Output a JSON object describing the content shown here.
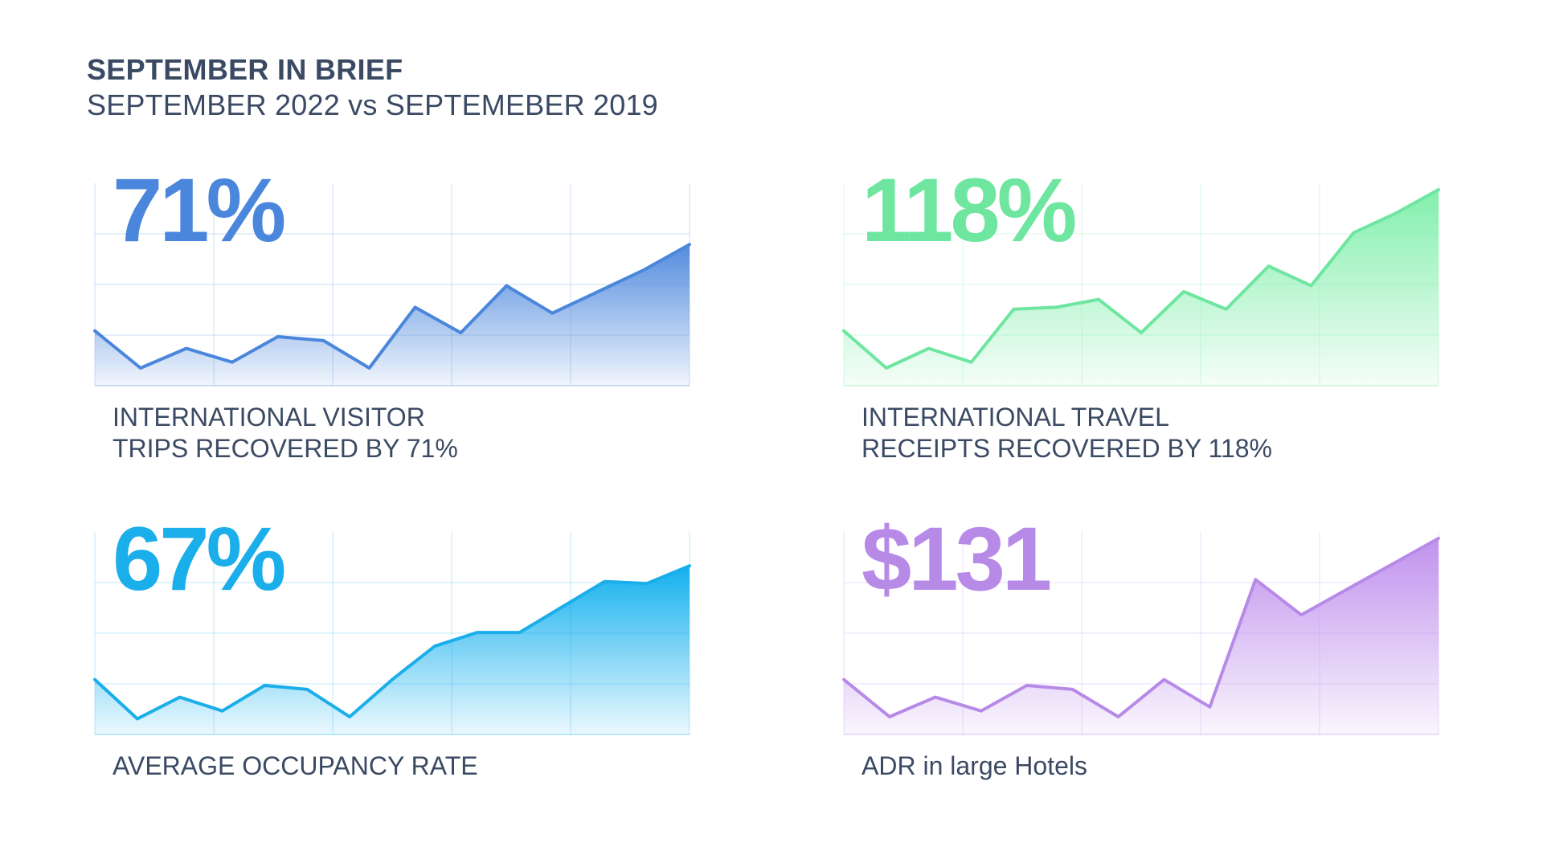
{
  "header": {
    "title": "SEPTEMBER IN BRIEF",
    "subtitle": "SEPTEMBER  2022  vs  SEPTEMEBER 2019"
  },
  "chart_data": [
    {
      "type": "area",
      "headline": "71%",
      "label": "INTERNATIONAL VISITOR\nTRIPS RECOVERED BY 71%",
      "color": "#4a86dc",
      "fill_top": "#4a86dc",
      "x": [
        0,
        1,
        2,
        3,
        4,
        5,
        6,
        7,
        8,
        9,
        10,
        11,
        12,
        13
      ],
      "values": [
        28,
        9,
        19,
        12,
        25,
        23,
        9,
        40,
        27,
        51,
        37,
        48,
        59,
        72
      ],
      "ylim": [
        0,
        100
      ]
    },
    {
      "type": "area",
      "headline": "118%",
      "label": "INTERNATIONAL TRAVEL\nRECEIPTS RECOVERED BY 118%",
      "color": "#6ee6a0",
      "fill_top": "#7deea8",
      "x": [
        0,
        1,
        2,
        3,
        4,
        5,
        6,
        7,
        8,
        9,
        10,
        11,
        12,
        13,
        14
      ],
      "values": [
        28,
        9,
        19,
        12,
        39,
        40,
        44,
        27,
        48,
        39,
        61,
        51,
        78,
        88,
        100
      ],
      "ylim": [
        0,
        100
      ]
    },
    {
      "type": "area",
      "headline": "67%",
      "label": "AVERAGE OCCUPANCY RATE",
      "color": "#1aaeea",
      "fill_top": "#08aced",
      "x": [
        0,
        1,
        2,
        3,
        4,
        5,
        6,
        7,
        8,
        9,
        10,
        11,
        12,
        13,
        14
      ],
      "values": [
        28,
        8,
        19,
        12,
        25,
        23,
        9,
        28,
        45,
        52,
        52,
        65,
        78,
        77,
        86
      ],
      "ylim": [
        0,
        100
      ]
    },
    {
      "type": "area",
      "headline": "$131",
      "label": "ADR in large Hotels",
      "color": "#b88ae8",
      "fill_top": "#bd8cec",
      "x": [
        0,
        1,
        2,
        3,
        4,
        5,
        6,
        7,
        8,
        9,
        10,
        11,
        12,
        13
      ],
      "values": [
        28,
        9,
        19,
        12,
        25,
        23,
        9,
        28,
        14,
        79,
        61,
        74,
        87,
        100
      ],
      "ylim": [
        0,
        100
      ]
    }
  ]
}
